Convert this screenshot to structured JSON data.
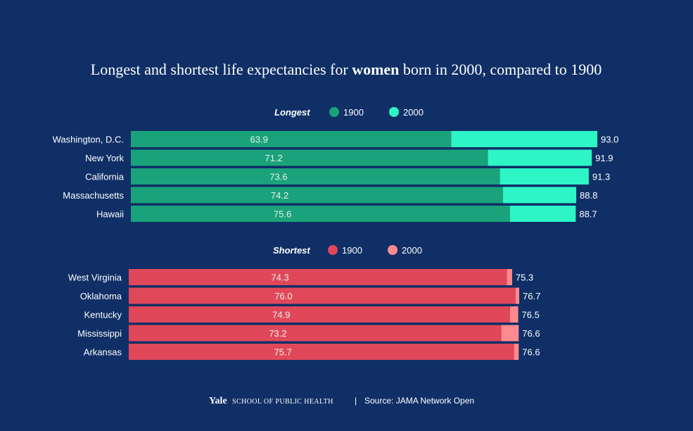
{
  "title": {
    "part1": "Longest and shortest life expectancies for ",
    "bold": "women",
    "part2": " born in 2000, compared to 1900"
  },
  "chart_data": [
    {
      "type": "bar",
      "orientation": "horizontal",
      "heading": "Longest",
      "legend": [
        {
          "name": "1900",
          "color": "#1aa37a"
        },
        {
          "name": "2000",
          "color": "#2ef5c6"
        }
      ],
      "categories": [
        "Washington, D.C.",
        "New York",
        "California",
        "Massachusetts",
        "Hawaii"
      ],
      "series": [
        {
          "name": "1900",
          "values": [
            63.9,
            71.2,
            73.6,
            74.2,
            75.6
          ]
        },
        {
          "name": "2000",
          "values": [
            93.0,
            91.9,
            91.3,
            88.8,
            88.7
          ]
        }
      ],
      "labels_1900": [
        "63.9",
        "71.2",
        "73.6",
        "74.2",
        "75.6"
      ],
      "labels_2000": [
        "93.0",
        "91.9",
        "91.3",
        "88.8",
        "88.7"
      ],
      "xlim": [
        0,
        93
      ]
    },
    {
      "type": "bar",
      "orientation": "horizontal",
      "heading": "Shortest",
      "legend": [
        {
          "name": "1900",
          "color": "#e0485a"
        },
        {
          "name": "2000",
          "color": "#ff8a8e"
        }
      ],
      "categories": [
        "West Virginia",
        "Oklahoma",
        "Kentucky",
        "Mississippi",
        "Arkansas"
      ],
      "series": [
        {
          "name": "1900",
          "values": [
            74.3,
            76.0,
            74.9,
            73.2,
            75.7
          ]
        },
        {
          "name": "2000",
          "values": [
            75.3,
            76.7,
            76.5,
            76.6,
            76.6
          ]
        }
      ],
      "labels_1900": [
        "74.3",
        "76.0",
        "74.9",
        "73.2",
        "75.7"
      ],
      "labels_2000": [
        "75.3",
        "76.7",
        "76.5",
        "76.6",
        "76.6"
      ],
      "xlim": [
        0,
        76.7
      ]
    }
  ],
  "footer": {
    "yale": "Yale",
    "school": "SCHOOL OF PUBLIC HEALTH",
    "separator": "|",
    "source": "Source: JAMA Network Open"
  },
  "colors": {
    "background": "#0f2f66"
  }
}
